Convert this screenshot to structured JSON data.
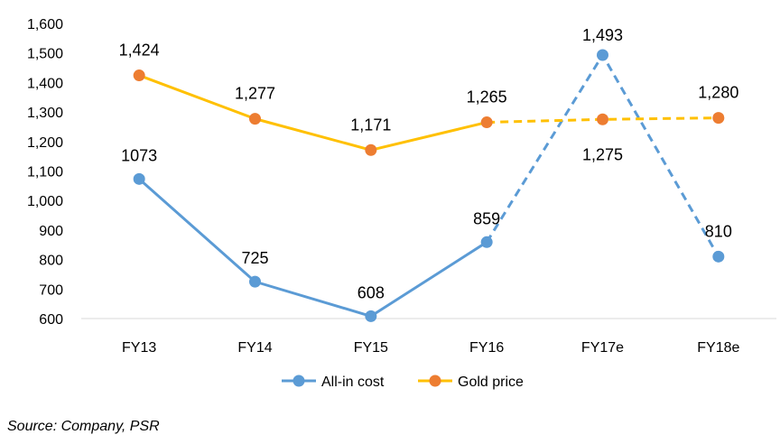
{
  "chart_data": {
    "type": "line",
    "categories": [
      "FY13",
      "FY14",
      "FY15",
      "FY16",
      "FY17e",
      "FY18e"
    ],
    "ylim": [
      600,
      1600
    ],
    "yticks": [
      "600",
      "700",
      "800",
      "900",
      "1,000",
      "1,100",
      "1,200",
      "1,300",
      "1,400",
      "1,500",
      "1,600"
    ],
    "grid": false,
    "legend_position": "bottom",
    "series": [
      {
        "name": "All-in cost",
        "color": "#5B9BD5",
        "values": [
          1073,
          725,
          608,
          859,
          1493,
          810
        ],
        "labels": [
          "1073",
          "725",
          "608",
          "859",
          "1,493",
          "810"
        ],
        "dashed_from_index": 3
      },
      {
        "name": "Gold price",
        "color": "#FFC000",
        "marker_color": "#ED7D31",
        "values": [
          1424,
          1277,
          1171,
          1265,
          1275,
          1280
        ],
        "labels": [
          "1,424",
          "1,277",
          "1,171",
          "1,265",
          "1,275",
          "1,280"
        ],
        "dashed_from_index": 3
      }
    ]
  },
  "source_note": "Source: Company, PSR"
}
